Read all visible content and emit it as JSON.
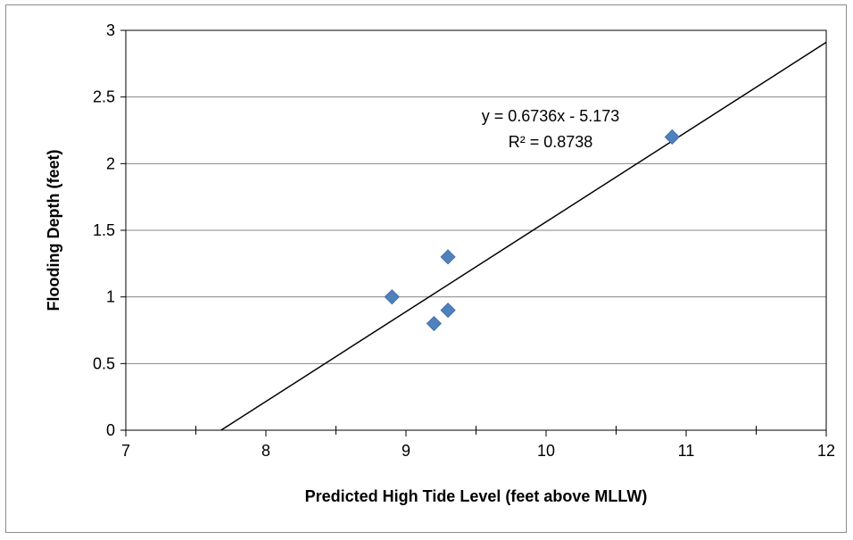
{
  "chart_data": {
    "type": "scatter",
    "title": "",
    "xlabel": "Predicted High Tide Level (feet above MLLW)",
    "ylabel": "Flooding Depth (feet)",
    "xlim": [
      7,
      12
    ],
    "ylim": [
      0,
      3
    ],
    "x_ticks": [
      "7",
      "8",
      "9",
      "10",
      "11",
      "12"
    ],
    "y_ticks": [
      "0",
      "0.5",
      "1",
      "1.5",
      "2",
      "2.5",
      "3"
    ],
    "grid": "horizontal",
    "legend": "none",
    "series": [
      {
        "marker": "diamond",
        "color": "#4f81bd",
        "points": [
          {
            "x": 8.9,
            "y": 1.0
          },
          {
            "x": 9.2,
            "y": 0.8
          },
          {
            "x": 9.3,
            "y": 1.3
          },
          {
            "x": 9.3,
            "y": 0.9
          },
          {
            "x": 10.9,
            "y": 2.2
          }
        ]
      }
    ],
    "trendline": {
      "type": "linear",
      "slope": 0.6736,
      "intercept": -5.173,
      "color": "#000000",
      "equation_label": "y = 0.6736x - 5.173",
      "r2_label": "R² = 0.8738"
    }
  }
}
